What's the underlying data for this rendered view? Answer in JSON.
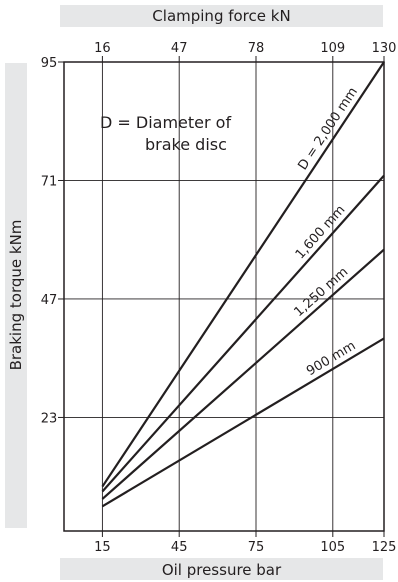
{
  "chart_data": {
    "type": "line",
    "xlabel_bottom": "Oil pressure bar",
    "xlabel_top": "Clamping force kN",
    "ylabel": "Braking torque kNm",
    "note_line1": "D = Diameter of",
    "note_line2": "brake disc",
    "x_ticks_bottom": [
      "15",
      "45",
      "75",
      "105",
      "125"
    ],
    "x_ticks_top": [
      "16",
      "47",
      "78",
      "109",
      "130"
    ],
    "y_ticks": [
      "23",
      "47",
      "71",
      "95"
    ],
    "xlim": [
      0,
      125
    ],
    "ylim": [
      0,
      95
    ],
    "grid": true,
    "series": [
      {
        "name": "D = 2,000 mm",
        "x": [
          15,
          125
        ],
        "y": [
          9,
          95
        ]
      },
      {
        "name": "1,600 mm",
        "x": [
          15,
          125
        ],
        "y": [
          8,
          72
        ]
      },
      {
        "name": "1,250 mm",
        "x": [
          15,
          125
        ],
        "y": [
          6.5,
          57
        ]
      },
      {
        "name": "900 mm",
        "x": [
          15,
          125
        ],
        "y": [
          5,
          39
        ]
      }
    ]
  }
}
